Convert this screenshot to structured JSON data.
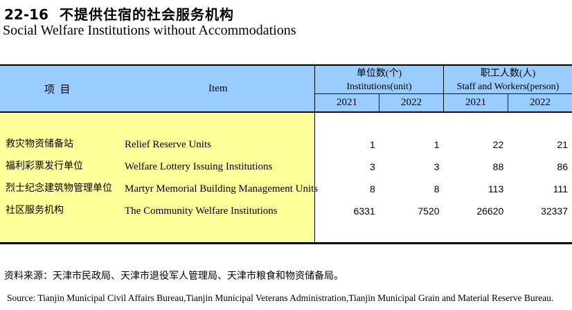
{
  "title": {
    "number": "22-16",
    "zh": "不提供住宿的社会服务机构",
    "en": "Social Welfare Institutions without Accommodations"
  },
  "table": {
    "item_header": {
      "zh": "项  目",
      "en": "Item"
    },
    "groups": [
      {
        "zh": "单位数(个)",
        "en": "Institutions(unit)",
        "years": [
          "2021",
          "2022"
        ]
      },
      {
        "zh": "职工人数(人)",
        "en": "Staff and Workers(person)",
        "years": [
          "2021",
          "2022"
        ]
      }
    ],
    "rows": [
      {
        "zh": "救灾物资储备站",
        "en": "Relief Reserve Units",
        "values": [
          "1",
          "1",
          "22",
          "21"
        ]
      },
      {
        "zh": "福利彩票发行单位",
        "en": "Welfare Lottery Issuing Institutions",
        "values": [
          "3",
          "3",
          "88",
          "86"
        ]
      },
      {
        "zh": "烈士纪念建筑物管理单位",
        "en": "Martyr Memorial Building Management Units",
        "values": [
          "8",
          "8",
          "113",
          "111"
        ]
      },
      {
        "zh": "社区服务机构",
        "en": "The Community Welfare Institutions",
        "values": [
          "6331",
          "7520",
          "26620",
          "32337"
        ]
      }
    ]
  },
  "footer": {
    "zh": "资料来源：天津市民政局、天津市退役军人管理局、天津市粮食和物资储备局。",
    "en": "Source: Tianjin Municipal Civil Affairs Bureau,Tianjin Municipal Veterans Administration,Tianjin Municipal Grain and Material Reserve Bureau."
  },
  "colors": {
    "header_bg": "#99CCFF",
    "item_column_bg": "#FFFF99",
    "border": "#000000",
    "text": "#000000"
  }
}
